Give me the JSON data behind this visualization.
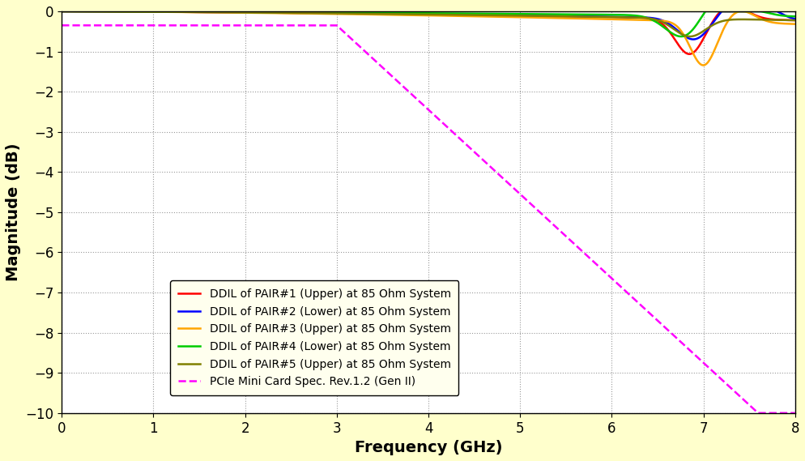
{
  "title": "",
  "xlabel": "Frequency (GHz)",
  "ylabel": "Magnitude (dB)",
  "xlim": [
    0,
    8
  ],
  "ylim": [
    -10,
    0
  ],
  "xticks": [
    0,
    1,
    2,
    3,
    4,
    5,
    6,
    7,
    8
  ],
  "yticks": [
    0,
    -1,
    -2,
    -3,
    -4,
    -5,
    -6,
    -7,
    -8,
    -9,
    -10
  ],
  "background_color": "#FFFFCC",
  "plot_bg_color": "#FFFFFF",
  "grid_color": "#999999",
  "legend_labels": [
    "DDIL of PAIR#1 (Upper) at 85 Ohm System",
    "DDIL of PAIR#2 (Lower) at 85 Ohm System",
    "DDIL of PAIR#3 (Upper) at 85 Ohm System",
    "DDIL of PAIR#4 (Lower) at 85 Ohm System",
    "DDIL of PAIR#5 (Upper) at 85 Ohm System",
    "PCIe Mini Card Spec. Rev.1.2 (Gen II)"
  ],
  "line_colors": [
    "#FF0000",
    "#0000FF",
    "#FFA500",
    "#00CC00",
    "#808000",
    "#FF00FF"
  ],
  "line_styles": [
    "-",
    "-",
    "-",
    "-",
    "-",
    "--"
  ],
  "line_widths": [
    1.8,
    1.8,
    1.8,
    1.8,
    1.8,
    1.8
  ],
  "xlabel_fontsize": 14,
  "ylabel_fontsize": 14,
  "tick_fontsize": 12,
  "legend_fontsize": 10
}
